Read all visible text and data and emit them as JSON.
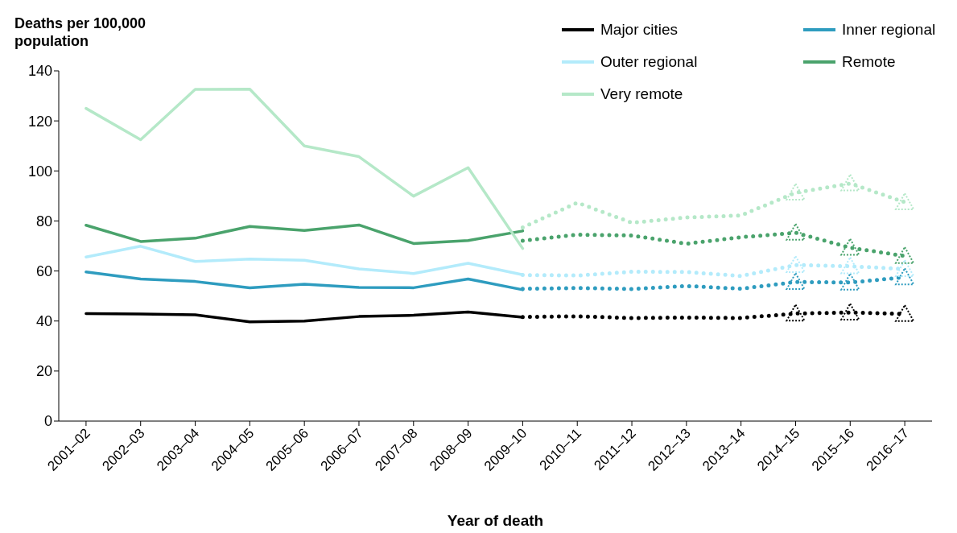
{
  "chart_data": {
    "type": "line",
    "ylabel": "Deaths per 100,000 population",
    "xlabel": "Year of death",
    "categories": [
      "2001–02",
      "2002–03",
      "2003–04",
      "2004–05",
      "2005–06",
      "2006–07",
      "2007–08",
      "2008–09",
      "2009–10",
      "2010–11",
      "2011–12",
      "2012–13",
      "2013–14",
      "2014–15",
      "2015–16",
      "2016–17"
    ],
    "ylim": [
      0,
      140
    ],
    "yticks": [
      0,
      20,
      40,
      60,
      80,
      100,
      120,
      140
    ],
    "grid": false,
    "legend": "top right",
    "marker": "none",
    "series": [
      {
        "name": "Major cities",
        "color": "#000000",
        "line_style": "solid",
        "values": [
          43,
          42.8,
          42.5,
          39.7,
          40,
          41.8,
          42.3,
          43.6,
          41.5,
          null,
          null,
          null,
          null,
          null,
          null,
          null
        ]
      },
      {
        "name": "Inner regional",
        "color": "#2e9cbf",
        "line_style": "solid",
        "values": [
          59.6,
          56.8,
          55.8,
          53.3,
          54.7,
          53.4,
          53.3,
          56.8,
          52.5,
          null,
          null,
          null,
          null,
          null,
          null,
          null
        ]
      },
      {
        "name": "Outer regional",
        "color": "#b3ebfb",
        "line_style": "solid",
        "values": [
          65.6,
          69.9,
          63.8,
          64.8,
          64.3,
          60.8,
          59,
          63.1,
          58.5,
          null,
          null,
          null,
          null,
          null,
          null,
          null
        ]
      },
      {
        "name": "Remote",
        "color": "#4aa36c",
        "line_style": "solid",
        "values": [
          78.3,
          71.8,
          73.1,
          77.8,
          76.2,
          78.4,
          71,
          72.2,
          76,
          null,
          null,
          null,
          null,
          null,
          null,
          null
        ]
      },
      {
        "name": "Very remote",
        "color": "#b5e8c8",
        "line_style": "solid",
        "values": [
          125,
          112.5,
          132.6,
          132.7,
          110,
          105.7,
          89.9,
          101.3,
          69,
          null,
          null,
          null,
          null,
          null,
          null,
          null
        ]
      },
      {
        "color": "#000000",
        "line_style": "dotted",
        "values": [
          null,
          null,
          null,
          null,
          null,
          null,
          null,
          null,
          41.6,
          41.9,
          41.2,
          41.4,
          41.2,
          43,
          43.4,
          42.8
        ]
      },
      {
        "color": "#2e9cbf",
        "line_style": "dotted",
        "values": [
          null,
          null,
          null,
          null,
          null,
          null,
          null,
          null,
          52.9,
          53.2,
          52.8,
          54,
          52.9,
          55.6,
          55.4,
          57.5
        ]
      },
      {
        "color": "#b3ebfb",
        "line_style": "dotted",
        "values": [
          null,
          null,
          null,
          null,
          null,
          null,
          null,
          null,
          58.4,
          58.2,
          59.7,
          59.6,
          58,
          62.4,
          61.9,
          60.8
        ]
      },
      {
        "color": "#4aa36c",
        "line_style": "dotted",
        "values": [
          null,
          null,
          null,
          null,
          null,
          null,
          null,
          null,
          72.1,
          74.5,
          74.2,
          70.9,
          73.5,
          75.3,
          69.3,
          66
        ]
      },
      {
        "color": "#b5e8c8",
        "line_style": "dotted",
        "values": [
          null,
          null,
          null,
          null,
          null,
          null,
          null,
          null,
          77.4,
          87.3,
          79.3,
          81.4,
          82.2,
          91.3,
          95,
          87.5
        ]
      },
      {
        "type": "scatter",
        "marker": "triangle",
        "color": "#000000",
        "x": [
          "2014–15",
          "2015–16",
          "2016–17"
        ],
        "values": [
          43,
          43.4,
          42.8
        ]
      },
      {
        "type": "scatter",
        "marker": "triangle",
        "color": "#2e9cbf",
        "x": [
          "2014–15",
          "2015–16",
          "2016–17"
        ],
        "values": [
          55.6,
          55.4,
          57.5
        ]
      },
      {
        "type": "scatter",
        "marker": "triangle",
        "color": "#b3ebfb",
        "x": [
          "2014–15",
          "2015–16",
          "2016–17"
        ],
        "values": [
          62.4,
          61.9,
          60.8
        ]
      },
      {
        "type": "scatter",
        "marker": "triangle",
        "color": "#4aa36c",
        "x": [
          "2014–15",
          "2015–16",
          "2016–17"
        ],
        "values": [
          75.3,
          69.3,
          66
        ]
      },
      {
        "type": "scatter",
        "marker": "triangle",
        "color": "#b5e8c8",
        "x": [
          "2014–15",
          "2015–16",
          "2016–17"
        ],
        "values": [
          91.3,
          95,
          87.5
        ]
      }
    ]
  }
}
